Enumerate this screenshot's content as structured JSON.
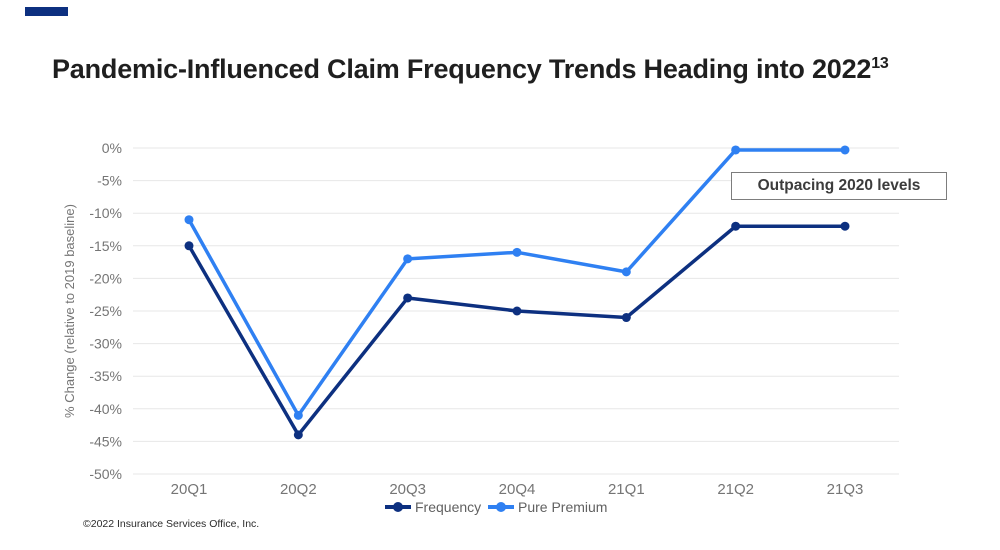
{
  "slide": {
    "title": "Pandemic-Influenced Claim Frequency Trends Heading into 2022",
    "title_superscript": "13",
    "footer": "©2022 Insurance Services Office, Inc.",
    "accent_color": "#0d3080"
  },
  "annotation": {
    "text": "Outpacing 2020 levels"
  },
  "chart_data": {
    "type": "line",
    "title": "",
    "categories": [
      "20Q1",
      "20Q2",
      "20Q3",
      "20Q4",
      "21Q1",
      "21Q2",
      "21Q3"
    ],
    "series": [
      {
        "name": "Frequency",
        "color": "#0d3080",
        "values": [
          -15,
          -44,
          -23,
          -25,
          -26,
          -12,
          -12
        ]
      },
      {
        "name": "Pure Premium",
        "color": "#2f80f2",
        "values": [
          -11,
          -41,
          -17,
          -16,
          -19,
          -0.3,
          -0.3
        ]
      }
    ],
    "xlabel": "",
    "ylabel": "% Change (relative to 2019 baseline)",
    "ylim": [
      -50,
      0
    ],
    "ytick_step": 5,
    "ytick_suffix": "%",
    "grid": true,
    "legend_position": "bottom",
    "gridline_color": "#e7e7e7",
    "tick_color": "#757575",
    "legend_text_color": "#616161"
  }
}
